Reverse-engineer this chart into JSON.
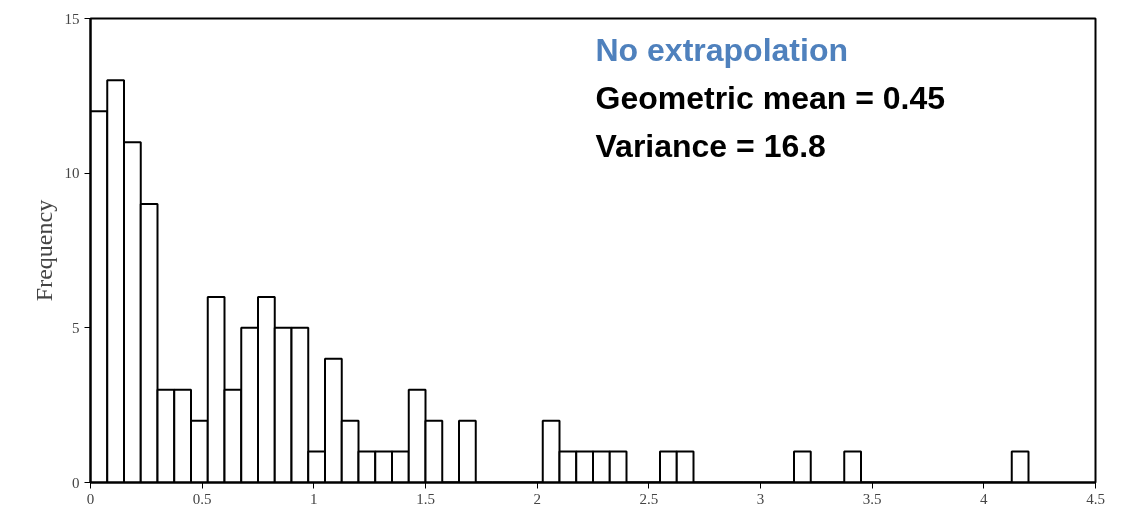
{
  "chart_data": {
    "type": "histogram",
    "ylabel": "Frequency",
    "bins": [
      0,
      0.075,
      0.15,
      0.225,
      0.3,
      0.375,
      0.45,
      0.525,
      0.6,
      0.675,
      0.75,
      0.825,
      0.9,
      0.975,
      1.05,
      1.125,
      1.2,
      1.275,
      1.35,
      1.425,
      1.5,
      1.575,
      1.65,
      1.725,
      1.8,
      1.875,
      1.95,
      2.025,
      2.1,
      2.175,
      2.25,
      2.325,
      2.4,
      2.475,
      2.55,
      2.625,
      2.7,
      2.775,
      2.85,
      2.925,
      3,
      3.075,
      3.15,
      3.225,
      3.3,
      3.375,
      3.45,
      3.525,
      3.6,
      3.675,
      3.75,
      3.825,
      3.9,
      3.975,
      4.05,
      4.125,
      4.2
    ],
    "values": [
      12,
      13,
      11,
      9,
      3,
      3,
      2,
      6,
      3,
      5,
      6,
      5,
      5,
      1,
      4,
      2,
      1,
      1,
      1,
      3,
      2,
      0,
      2,
      0,
      0,
      0,
      0,
      2,
      1,
      1,
      1,
      1,
      0,
      0,
      1,
      1,
      0,
      0,
      0,
      0,
      0,
      0,
      1,
      0,
      0,
      1,
      0,
      0,
      0,
      0,
      0,
      0,
      0,
      0,
      0,
      1
    ],
    "color": "#ffffff",
    "xlim": [
      0,
      4.5
    ],
    "xticks": [
      0,
      0.5,
      1,
      1.5,
      2,
      2.5,
      3,
      3.5,
      4,
      4.5
    ],
    "ylim": [
      0,
      15
    ],
    "yticks": [
      0,
      5,
      10,
      15
    ],
    "grid": false,
    "annotations": [
      "No extrapolation",
      "Geometric mean = 0.45",
      "Variance = 16.8"
    ]
  }
}
